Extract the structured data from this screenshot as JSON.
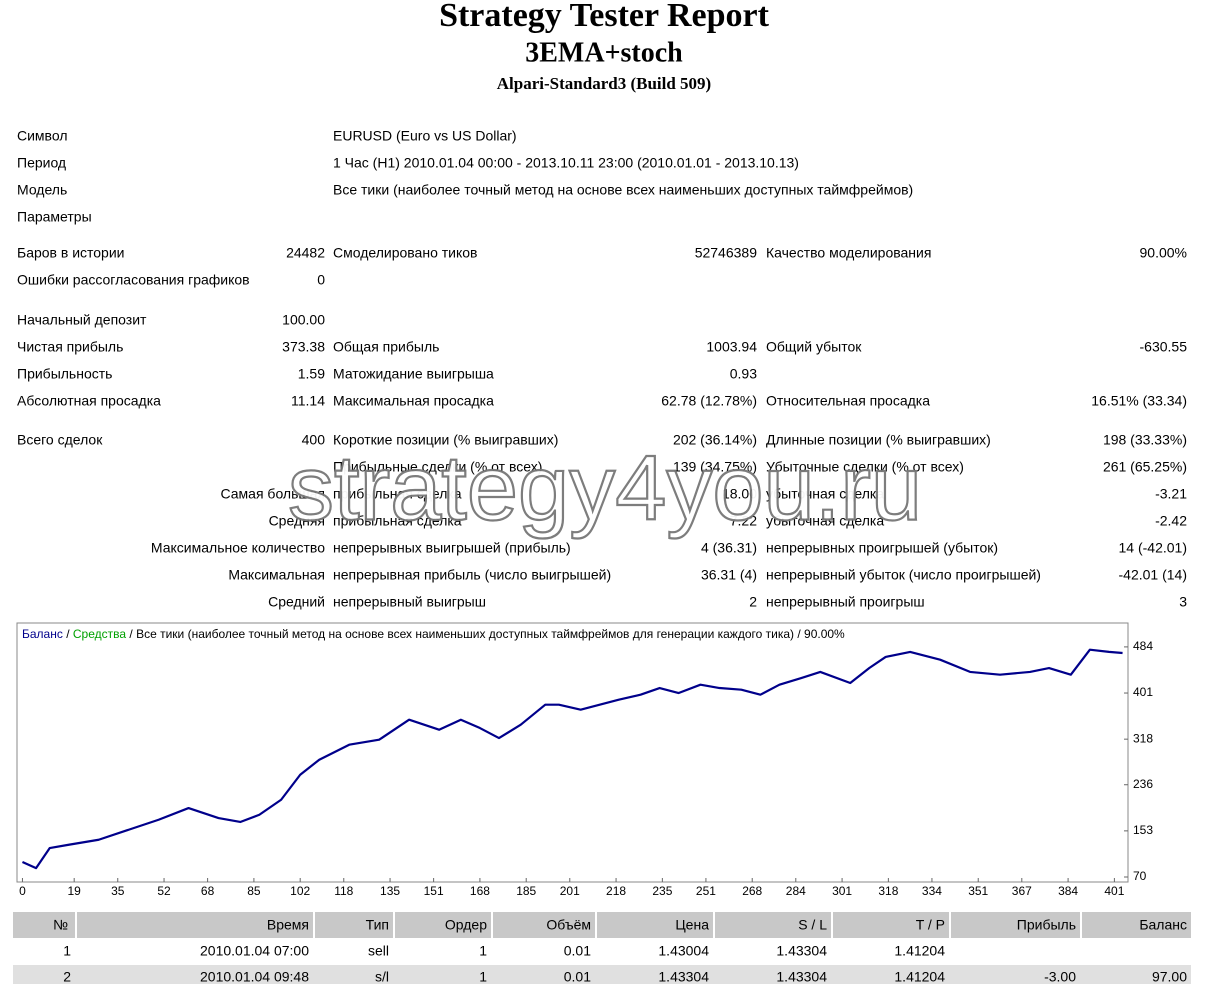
{
  "header": {
    "title": "Strategy Tester Report",
    "subtitle": "3EMA+stoch",
    "server": "Alpari-Standard3 (Build 509)"
  },
  "summary": [
    [
      "Символ",
      "EURUSD (Euro vs US Dollar)"
    ],
    [
      "Период",
      "1 Час (H1) 2010.01.04 00:00 - 2013.10.11 23:00 (2010.01.01 - 2013.10.13)"
    ],
    [
      "Модель",
      "Все тики (наиболее точный метод на основе всех наименьших доступных таймфреймов)"
    ],
    [
      "Параметры"
    ],
    [
      "Баров в истории",
      "24482",
      "Смоделировано тиков",
      "52746389",
      "Качество моделирования",
      "90.00%"
    ],
    [
      "Ошибки рассогласования графиков",
      "0"
    ],
    [
      "Начальный депозит",
      "100.00"
    ],
    [
      "Чистая прибыль",
      "373.38",
      "Общая прибыль",
      "1003.94",
      "Общий убыток",
      "-630.55"
    ],
    [
      "Прибыльность",
      "1.59",
      "Матожидание выигрыша",
      "0.93"
    ],
    [
      "Абсолютная просадка",
      "11.14",
      "Максимальная просадка",
      "62.78 (12.78%)",
      "Относительная просадка",
      "16.51% (33.34)"
    ],
    [
      "Всего сделок",
      "400",
      "Короткие позиции (% выигравших)",
      "202 (36.14%)",
      "Длинные позиции (% выигравших)",
      "198 (33.33%)"
    ],
    [
      "Прибыльные сделки (% от всех)",
      "139 (34.75%)",
      "Убыточные сделки (% от всех)",
      "261 (65.25%)"
    ],
    [
      "Самая большая",
      "прибыльная сделка",
      "18.00",
      "убыточная сделка",
      "-3.21"
    ],
    [
      "Средняя",
      "прибыльная сделка",
      "7.22",
      "убыточная сделка",
      "-2.42"
    ],
    [
      "Максимальное количество",
      "непрерывных выигрышей (прибыль)",
      "4 (36.31)",
      "непрерывных проигрышей (убыток)",
      "14 (-42.01)"
    ],
    [
      "Максимальная",
      "непрерывная прибыль (число выигрышей)",
      "36.31 (4)",
      "непрерывный убыток (число проигрышей)",
      "-42.01 (14)"
    ],
    [
      "Средний",
      "непрерывный выигрыш",
      "2",
      "непрерывный проигрыш",
      "3"
    ]
  ],
  "watermark": "strategy4you.ru",
  "chart_data": {
    "type": "line",
    "legend_separator": "/",
    "subtitle": "/ Все тики (наиболее точный метод на основе всех наименьших доступных таймфреймов для генерации каждого тика) / 90.00%",
    "equity": {
      "name": "Средства",
      "color": "#00a000"
    },
    "x": [
      0,
      5,
      10,
      17,
      28,
      39,
      50,
      61,
      72,
      80,
      87,
      95,
      102,
      109,
      120,
      131,
      142,
      153,
      161,
      168,
      175,
      183,
      192,
      197,
      205,
      212,
      219,
      227,
      234,
      241,
      249,
      256,
      264,
      271,
      278,
      286,
      293,
      304,
      311,
      317,
      326,
      337,
      348,
      359,
      370,
      377,
      385,
      392,
      399,
      404
    ],
    "series": [
      {
        "name": "Баланс",
        "color": "#00008b",
        "values": [
          97,
          86,
          122,
          128,
          137,
          155,
          173,
          194,
          176,
          169,
          182,
          209,
          254,
          281,
          308,
          317,
          353,
          335,
          353,
          338,
          320,
          344,
          380,
          380,
          371,
          380,
          389,
          398,
          410,
          401,
          416,
          410,
          407,
          398,
          416,
          428,
          439,
          419,
          446,
          466,
          475,
          461,
          439,
          434,
          439,
          446,
          434,
          479,
          475,
          473
        ]
      }
    ],
    "xlim": [
      -2,
      406
    ],
    "xticks": [
      0,
      19,
      35,
      52,
      68,
      85,
      102,
      118,
      135,
      151,
      168,
      185,
      201,
      218,
      235,
      251,
      268,
      284,
      301,
      318,
      334,
      351,
      367,
      384,
      401
    ],
    "ylim": [
      61,
      527
    ],
    "yticks": [
      70,
      153,
      236,
      318,
      401,
      484
    ]
  },
  "trades": {
    "header": [
      "№",
      "Время",
      "Тип",
      "Ордер",
      "Объём",
      "Цена",
      "S / L",
      "T / P",
      "Прибыль",
      "Баланс"
    ],
    "rows": [
      [
        "1",
        "2010.01.04 07:00",
        "sell",
        "1",
        "0.01",
        "1.43004",
        "1.43304",
        "1.41204"
      ],
      [
        "2",
        "2010.01.04 09:48",
        "s/l",
        "1",
        "0.01",
        "1.43304",
        "1.43304",
        "1.41204",
        "-3.00",
        "97.00"
      ]
    ]
  }
}
